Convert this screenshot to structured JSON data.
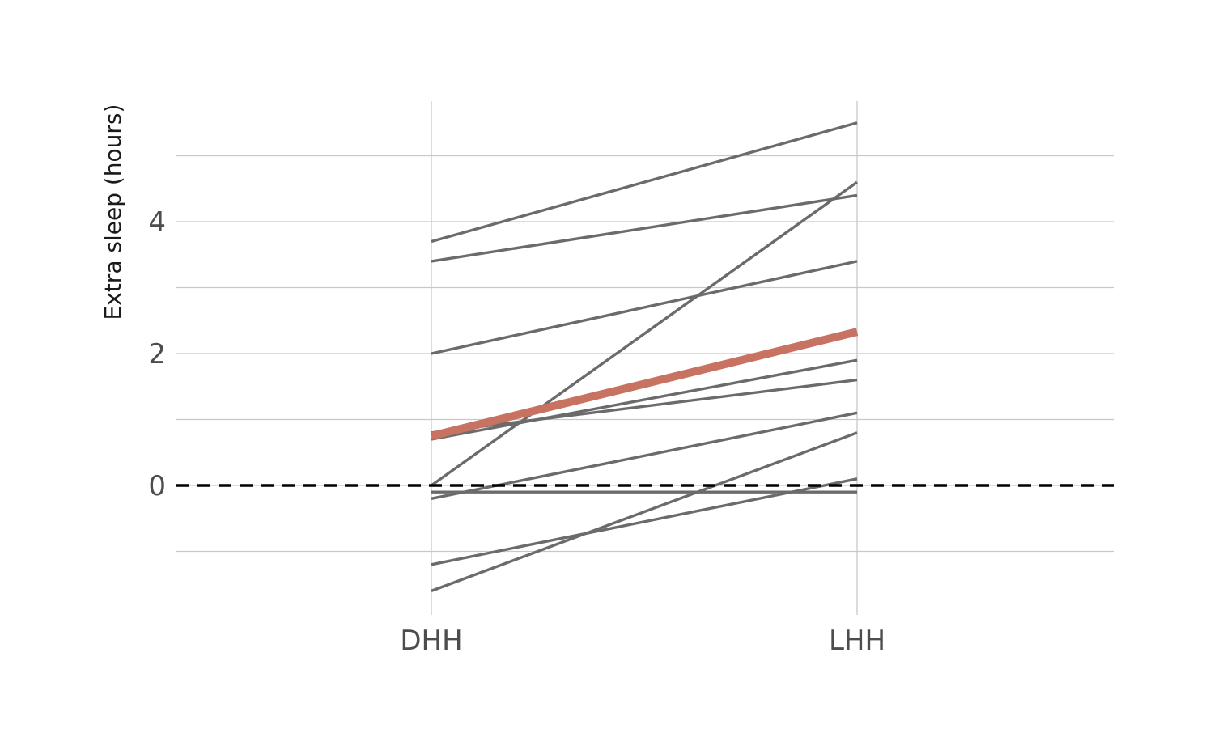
{
  "chart_data": {
    "type": "line",
    "title": "",
    "xlabel": "",
    "ylabel": "Extra sleep (hours)",
    "categories": [
      "DHH",
      "LHH"
    ],
    "ylim": [
      -1.9,
      5.8
    ],
    "yticks": [
      0,
      2,
      4
    ],
    "grid": true,
    "reference_line": {
      "y": 0,
      "style": "dashed",
      "color": "#000000"
    },
    "line_color": "#6b6b6b",
    "highlight_color": "#c87262",
    "series": [
      {
        "values": [
          0.7,
          1.9
        ]
      },
      {
        "values": [
          -1.6,
          0.8
        ]
      },
      {
        "values": [
          -0.2,
          1.1
        ]
      },
      {
        "values": [
          -1.2,
          0.1
        ]
      },
      {
        "values": [
          -0.1,
          -0.1
        ]
      },
      {
        "values": [
          3.4,
          4.4
        ]
      },
      {
        "values": [
          3.7,
          5.5
        ]
      },
      {
        "values": [
          0.8,
          1.6
        ]
      },
      {
        "values": [
          0.0,
          4.6
        ]
      },
      {
        "values": [
          2.0,
          3.4
        ]
      }
    ],
    "highlight": {
      "values": [
        0.75,
        2.33
      ]
    }
  }
}
